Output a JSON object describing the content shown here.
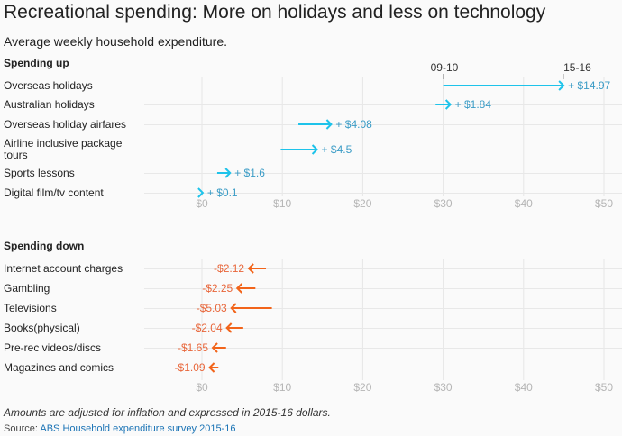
{
  "title": "Recreational spending: More on holidays and less on technology",
  "subtitle": "Average weekly household expenditure.",
  "note": "Amounts are adjusted for inflation and expressed in 2015-16 dollars.",
  "source_label": "Source:",
  "source_link": "ABS Household expenditure survey 2015-16",
  "chart_data": [
    {
      "type": "arrow",
      "title": "Spending up",
      "color": "#1ec3ea",
      "label_color": "#3b9cc6",
      "from_label": "09-10",
      "to_label": "15-16",
      "xlim": [
        0,
        50
      ],
      "x_ticks": [
        "$0",
        "$10",
        "$20",
        "$30",
        "$40",
        "$50"
      ],
      "grid": true,
      "categories": [
        "Overseas holidays",
        "Australian holidays",
        "Overseas holiday airfares",
        "Airline inclusive package tours",
        "Sports lessons",
        "Digital film/tv content"
      ],
      "from": [
        30.0,
        29.06,
        12.0,
        9.8,
        1.9,
        0.0
      ],
      "to": [
        44.97,
        30.9,
        16.08,
        14.3,
        3.5,
        0.1
      ],
      "labels": [
        "+ $14.97",
        "+ $1.84",
        "+ $4.08",
        "+ $4.5",
        "+ $1.6",
        "+ $0.1"
      ]
    },
    {
      "type": "arrow",
      "title": "Spending down",
      "color": "#f2641a",
      "label_color": "#e8663a",
      "xlim": [
        0,
        50
      ],
      "x_ticks": [
        "$0",
        "$10",
        "$20",
        "$30",
        "$40",
        "$50"
      ],
      "grid": true,
      "categories": [
        "Internet account charges",
        "Gambling",
        "Televisions",
        "Books(physical)",
        "Pre-rec videos/discs",
        "Magazines and comics"
      ],
      "from": [
        7.96,
        6.65,
        8.7,
        5.14,
        3.0,
        2.05
      ],
      "to": [
        5.84,
        4.4,
        3.67,
        3.1,
        1.35,
        0.96
      ],
      "labels": [
        "-$2.12",
        "-$2.25",
        "-$5.03",
        "-$2.04",
        "-$1.65",
        "-$1.09"
      ]
    }
  ]
}
